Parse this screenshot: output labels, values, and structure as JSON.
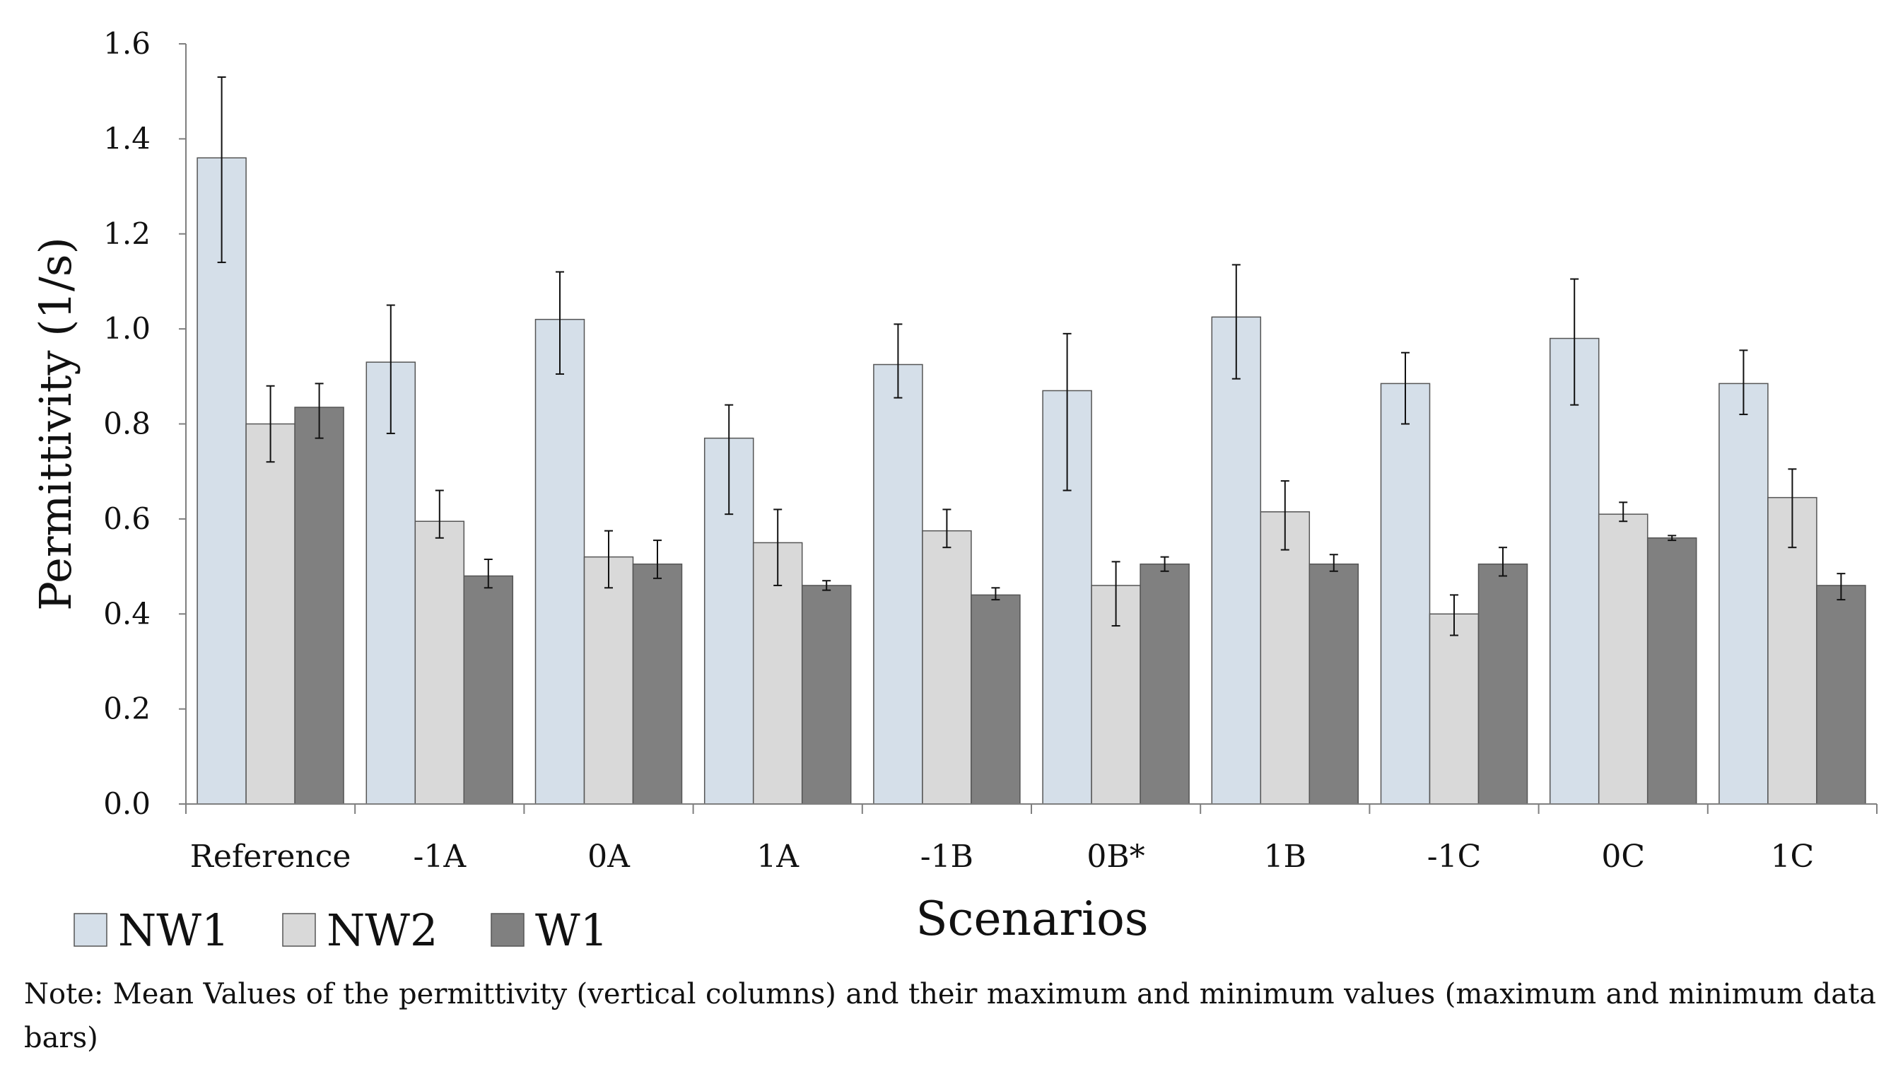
{
  "chart_data": {
    "type": "bar",
    "title": "",
    "xlabel": "Scenarios",
    "ylabel": "Permittivity (1/s)",
    "ylim": [
      0,
      1.6
    ],
    "yticks": [
      "0.0",
      "0.2",
      "0.4",
      "0.6",
      "0.8",
      "1.0",
      "1.2",
      "1.4",
      "1.6"
    ],
    "grid": false,
    "legend_position": "bottom-left",
    "categories": [
      "Reference",
      "-1A",
      "0A",
      "1A",
      "-1B",
      "0B*",
      "1B",
      "-1C",
      "0C",
      "1C"
    ],
    "series": [
      {
        "name": "NW1",
        "color": "#d5dfe9",
        "values": [
          1.36,
          0.93,
          1.02,
          0.77,
          0.925,
          0.87,
          1.025,
          0.885,
          0.98,
          0.885
        ],
        "min": [
          1.14,
          0.78,
          0.905,
          0.61,
          0.855,
          0.66,
          0.895,
          0.8,
          0.84,
          0.82
        ],
        "max": [
          1.53,
          1.05,
          1.12,
          0.84,
          1.01,
          0.99,
          1.135,
          0.95,
          1.105,
          0.955
        ]
      },
      {
        "name": "NW2",
        "color": "#d9d9d9",
        "values": [
          0.8,
          0.595,
          0.52,
          0.55,
          0.575,
          0.46,
          0.615,
          0.4,
          0.61,
          0.645
        ],
        "min": [
          0.72,
          0.56,
          0.455,
          0.46,
          0.54,
          0.375,
          0.535,
          0.355,
          0.595,
          0.54
        ],
        "max": [
          0.88,
          0.66,
          0.575,
          0.62,
          0.62,
          0.51,
          0.68,
          0.44,
          0.635,
          0.705
        ]
      },
      {
        "name": "W1",
        "color": "#808080",
        "values": [
          0.835,
          0.48,
          0.505,
          0.46,
          0.44,
          0.505,
          0.505,
          0.505,
          0.56,
          0.46
        ],
        "min": [
          0.77,
          0.455,
          0.475,
          0.45,
          0.43,
          0.49,
          0.49,
          0.48,
          0.555,
          0.43
        ],
        "max": [
          0.885,
          0.515,
          0.555,
          0.47,
          0.455,
          0.52,
          0.525,
          0.54,
          0.565,
          0.485
        ]
      }
    ]
  },
  "note": "Note: Mean Values of the permittivity (vertical columns) and their maximum and minimum values (maximum and minimum data bars)"
}
